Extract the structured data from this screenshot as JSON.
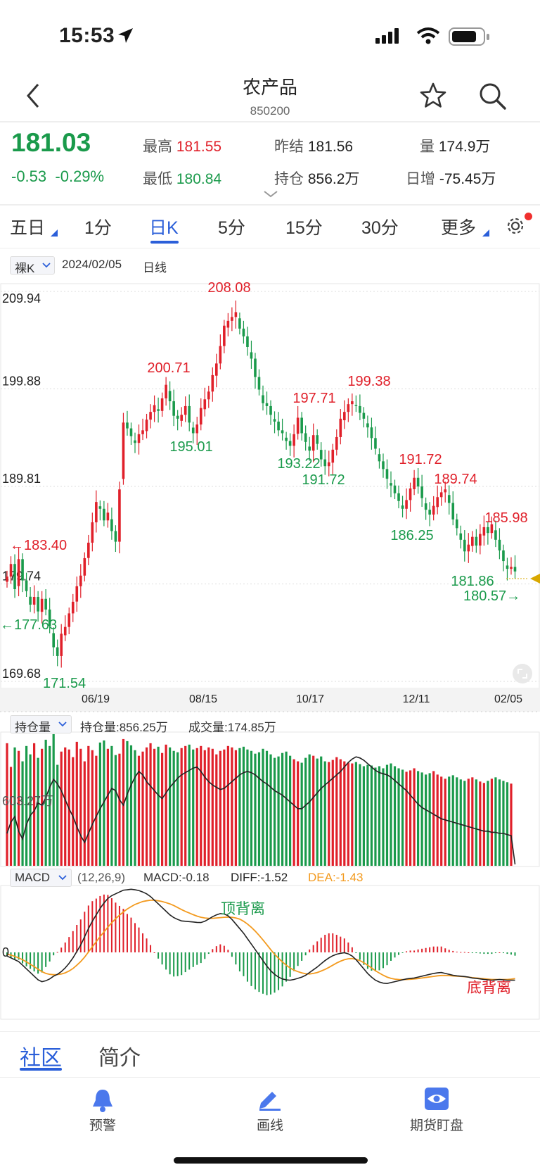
{
  "status_bar": {
    "time": "15:53"
  },
  "header": {
    "title": "农产品",
    "code": "850200"
  },
  "quote": {
    "last": "181.03",
    "change": "-0.53",
    "change_pct": "-0.29%",
    "high_label": "最高",
    "high": "181.55",
    "low_label": "最低",
    "low": "180.84",
    "prev_settle_label": "昨结",
    "prev_settle": "181.56",
    "open_interest_label": "持仓",
    "open_interest": "856.2万",
    "volume_label": "量",
    "volume": "174.9万",
    "daily_change_label": "日增",
    "daily_change": "-75.45万"
  },
  "tabs": [
    "五日",
    "1分",
    "日K",
    "5分",
    "15分",
    "30分",
    "更多"
  ],
  "active_tab": "日K",
  "chart_header": {
    "mode": "裸K",
    "date": "2024/02/05",
    "period": "日线"
  },
  "sub1_header": {
    "selector": "持仓量",
    "oi": "持仓量:856.25万",
    "vol": "成交量:174.85万"
  },
  "sub2_header": {
    "selector": "MACD",
    "params": "(12,26,9)",
    "macd": "MACD:-0.18",
    "diff": "DIFF:-1.52",
    "dea": "DEA:-1.43"
  },
  "bottom_tabs": [
    "社区",
    "简介"
  ],
  "bottom_nav": [
    "预警",
    "画线",
    "期货盯盘"
  ],
  "colors": {
    "up": "#e0202a",
    "down": "#1a9a4b",
    "accent": "#2b5fd9",
    "dea": "#f39a1e",
    "marker": "#d9a800"
  },
  "chart_data": {
    "type": "candlestick",
    "title": "农产品 日线",
    "y_ticks": [
      "209.94",
      "199.88",
      "189.81",
      "179.74",
      "169.68"
    ],
    "ylim": [
      169.68,
      209.94
    ],
    "x_ticks": [
      "06/19",
      "08/15",
      "10/17",
      "12/11",
      "02/05"
    ],
    "annotations": [
      {
        "text": "208.08",
        "kind": "high",
        "x": "08/26"
      },
      {
        "text": "200.71",
        "kind": "high",
        "x": "07/29"
      },
      {
        "text": "195.01",
        "kind": "low",
        "x": "08/09"
      },
      {
        "text": "197.71",
        "kind": "high",
        "x": "10/10"
      },
      {
        "text": "193.22",
        "kind": "low",
        "x": "10/14"
      },
      {
        "text": "191.72",
        "kind": "low",
        "x": "10/23"
      },
      {
        "text": "199.38",
        "kind": "high",
        "x": "11/06"
      },
      {
        "text": "191.72",
        "kind": "high",
        "x": "11/28"
      },
      {
        "text": "186.25",
        "kind": "low",
        "x": "11/24"
      },
      {
        "text": "189.74",
        "kind": "high",
        "x": "12/15"
      },
      {
        "text": "185.98",
        "kind": "high",
        "x": "01/22"
      },
      {
        "text": "181.86",
        "kind": "low",
        "x": "01/08"
      },
      {
        "text": "←183.40",
        "kind": "high",
        "x": "05/05"
      },
      {
        "text": "←177.63",
        "kind": "low",
        "x": "05/05"
      },
      {
        "text": "171.54",
        "kind": "low",
        "x": "05/22"
      },
      {
        "text": "180.57→",
        "kind": "low",
        "x": "02/01"
      }
    ],
    "closes": [
      180.5,
      181.8,
      179.2,
      182.3,
      180.1,
      179.0,
      177.6,
      178.4,
      176.9,
      178.2,
      177.1,
      175.4,
      173.2,
      172.3,
      174.6,
      175.3,
      176.7,
      177.9,
      179.5,
      180.6,
      182.4,
      184.0,
      186.1,
      188.2,
      187.5,
      186.3,
      187.1,
      185.2,
      184.1,
      189.5,
      196.4,
      195.8,
      195.0,
      194.3,
      195.2,
      195.6,
      196.7,
      197.5,
      198.2,
      197.6,
      198.9,
      200.3,
      198.6,
      197.1,
      196.8,
      197.2,
      198.1,
      196.4,
      195.3,
      196.2,
      197.9,
      198.8,
      199.6,
      201.3,
      202.5,
      204.3,
      206.4,
      206.9,
      207.3,
      207.8,
      206.1,
      205.3,
      204.2,
      203.0,
      201.1,
      199.8,
      198.4,
      198.1,
      197.2,
      196.5,
      195.6,
      195.3,
      194.5,
      194.0,
      195.2,
      196.9,
      195.3,
      194.4,
      193.5,
      195.1,
      194.2,
      192.6,
      191.9,
      192.3,
      193.6,
      194.9,
      196.8,
      197.5,
      198.3,
      198.6,
      198.1,
      197.4,
      196.8,
      195.9,
      194.8,
      193.7,
      192.4,
      191.6,
      190.6,
      189.9,
      189.1,
      188.3,
      187.5,
      188.4,
      189.6,
      190.7,
      189.8,
      188.6,
      187.4,
      186.9,
      187.8,
      188.7,
      189.2,
      189.5,
      188.1,
      186.4,
      185.5,
      184.3,
      183.1,
      183.8,
      184.6,
      183.7,
      184.9,
      185.6,
      185.0,
      185.9,
      184.3,
      183.2,
      182.1,
      181.3,
      181.5,
      181.03
    ],
    "open_interest_wan": [
      830,
      840,
      845,
      832,
      825,
      838,
      846,
      850,
      857,
      855,
      862,
      871,
      878,
      874,
      868,
      860,
      852,
      845,
      836,
      828,
      822,
      830,
      838,
      845,
      852,
      858,
      864,
      870,
      868,
      860,
      855,
      865,
      873,
      880,
      885,
      882,
      876,
      872,
      868,
      864,
      861,
      866,
      871,
      875,
      879,
      882,
      884,
      886,
      888,
      889,
      885,
      880,
      876,
      873,
      871,
      869,
      870,
      873,
      876,
      879,
      882,
      884,
      885,
      884,
      882,
      879,
      876,
      874,
      871,
      868,
      866,
      864,
      861,
      858,
      855,
      852,
      852,
      855,
      858,
      862,
      866,
      870,
      873,
      876,
      879,
      882,
      885,
      889,
      893,
      896,
      898,
      897,
      895,
      892,
      889,
      886,
      884,
      883,
      882,
      880,
      877,
      874,
      871,
      868,
      864,
      860,
      856,
      853,
      851,
      849,
      847,
      845,
      843,
      842,
      841,
      840,
      839,
      838,
      837,
      836,
      835,
      834,
      833,
      832,
      832,
      831,
      831,
      830,
      830,
      829,
      828,
      856.25
    ],
    "volume_wan": [
      176,
      142,
      170,
      165,
      150,
      172,
      160,
      176,
      155,
      168,
      181,
      172,
      189,
      145,
      164,
      170,
      167,
      156,
      178,
      168,
      150,
      172,
      166,
      158,
      177,
      180,
      168,
      172,
      159,
      161,
      182,
      179,
      173,
      166,
      158,
      164,
      170,
      176,
      168,
      171,
      162,
      174,
      170,
      165,
      163,
      169,
      172,
      174,
      167,
      169,
      172,
      166,
      170,
      168,
      160,
      165,
      167,
      172,
      170,
      166,
      169,
      171,
      167,
      165,
      161,
      163,
      168,
      165,
      160,
      155,
      157,
      162,
      164,
      158,
      153,
      150,
      148,
      155,
      160,
      158,
      154,
      157,
      150,
      149,
      152,
      156,
      153,
      150,
      148,
      147,
      149,
      146,
      143,
      145,
      144,
      141,
      143,
      140,
      145,
      147,
      143,
      140,
      138,
      135,
      137,
      140,
      136,
      134,
      131,
      133,
      136,
      131,
      128,
      125,
      128,
      130,
      127,
      124,
      122,
      125,
      127,
      124,
      121,
      119,
      122,
      125,
      127,
      124,
      122,
      120,
      118,
      174.85
    ],
    "macd": {
      "diff": [
        -0.2,
        -0.3,
        -0.4,
        -0.5,
        -0.7,
        -0.9,
        -1.1,
        -1.3,
        -1.5,
        -1.6,
        -1.55,
        -1.45,
        -1.3,
        -1.2,
        -1.05,
        -0.85,
        -0.6,
        -0.3,
        0.05,
        0.4,
        0.85,
        1.3,
        1.7,
        2.05,
        2.4,
        2.7,
        2.95,
        3.1,
        3.2,
        3.3,
        3.4,
        3.42,
        3.45,
        3.42,
        3.38,
        3.3,
        3.2,
        3.05,
        2.85,
        2.65,
        2.45,
        2.25,
        2.05,
        1.9,
        1.8,
        1.72,
        1.7,
        1.68,
        1.66,
        1.64,
        1.63,
        1.7,
        1.82,
        1.95,
        2.05,
        2.12,
        2.1,
        2.0,
        1.8,
        1.55,
        1.3,
        1.05,
        0.75,
        0.45,
        0.15,
        -0.15,
        -0.45,
        -0.75,
        -1.0,
        -1.2,
        -1.35,
        -1.45,
        -1.5,
        -1.52,
        -1.48,
        -1.42,
        -1.35,
        -1.25,
        -1.1,
        -0.95,
        -0.8,
        -0.62,
        -0.45,
        -0.3,
        -0.18,
        -0.1,
        -0.05,
        -0.02,
        -0.08,
        -0.2,
        -0.4,
        -0.65,
        -0.9,
        -1.15,
        -1.35,
        -1.52,
        -1.62,
        -1.68,
        -1.7,
        -1.65,
        -1.6,
        -1.55,
        -1.5,
        -1.45,
        -1.42,
        -1.4,
        -1.35,
        -1.3,
        -1.25,
        -1.2,
        -1.15,
        -1.12,
        -1.1,
        -1.15,
        -1.2,
        -1.25,
        -1.28,
        -1.3,
        -1.32,
        -1.35,
        -1.4,
        -1.42,
        -1.45,
        -1.48,
        -1.5,
        -1.52,
        -1.5,
        -1.48,
        -1.5,
        -1.52,
        -1.52,
        -1.52
      ],
      "dea": [
        -0.1,
        -0.15,
        -0.22,
        -0.3,
        -0.4,
        -0.52,
        -0.65,
        -0.78,
        -0.92,
        -1.05,
        -1.15,
        -1.2,
        -1.22,
        -1.21,
        -1.18,
        -1.12,
        -1.02,
        -0.88,
        -0.7,
        -0.5,
        -0.26,
        0.02,
        0.3,
        0.58,
        0.86,
        1.12,
        1.38,
        1.62,
        1.84,
        2.03,
        2.21,
        2.37,
        2.5,
        2.62,
        2.7,
        2.78,
        2.82,
        2.85,
        2.85,
        2.82,
        2.78,
        2.72,
        2.65,
        2.56,
        2.45,
        2.34,
        2.24,
        2.15,
        2.06,
        1.98,
        1.92,
        1.88,
        1.86,
        1.86,
        1.88,
        1.9,
        1.92,
        1.93,
        1.92,
        1.88,
        1.82,
        1.7,
        1.55,
        1.37,
        1.16,
        0.93,
        0.68,
        0.42,
        0.15,
        -0.1,
        -0.32,
        -0.52,
        -0.7,
        -0.85,
        -0.97,
        -1.05,
        -1.12,
        -1.17,
        -1.18,
        -1.15,
        -1.1,
        -1.02,
        -0.93,
        -0.82,
        -0.7,
        -0.58,
        -0.48,
        -0.4,
        -0.35,
        -0.34,
        -0.38,
        -0.45,
        -0.56,
        -0.7,
        -0.85,
        -1.0,
        -1.13,
        -1.25,
        -1.35,
        -1.42,
        -1.46,
        -1.48,
        -1.49,
        -1.48,
        -1.47,
        -1.45,
        -1.43,
        -1.4,
        -1.37,
        -1.34,
        -1.31,
        -1.28,
        -1.26,
        -1.26,
        -1.27,
        -1.29,
        -1.3,
        -1.31,
        -1.33,
        -1.35,
        -1.38,
        -1.4,
        -1.42,
        -1.44,
        -1.46,
        -1.48,
        -1.48,
        -1.48,
        -1.48,
        -1.48,
        -1.46,
        -1.43
      ]
    },
    "annotations_macd": [
      {
        "text": "顶背离"
      },
      {
        "text": "底背离"
      }
    ],
    "y_label_sub1": "603.27万",
    "y_label_sub2": "0",
    "last_price_marker": "181.03"
  }
}
